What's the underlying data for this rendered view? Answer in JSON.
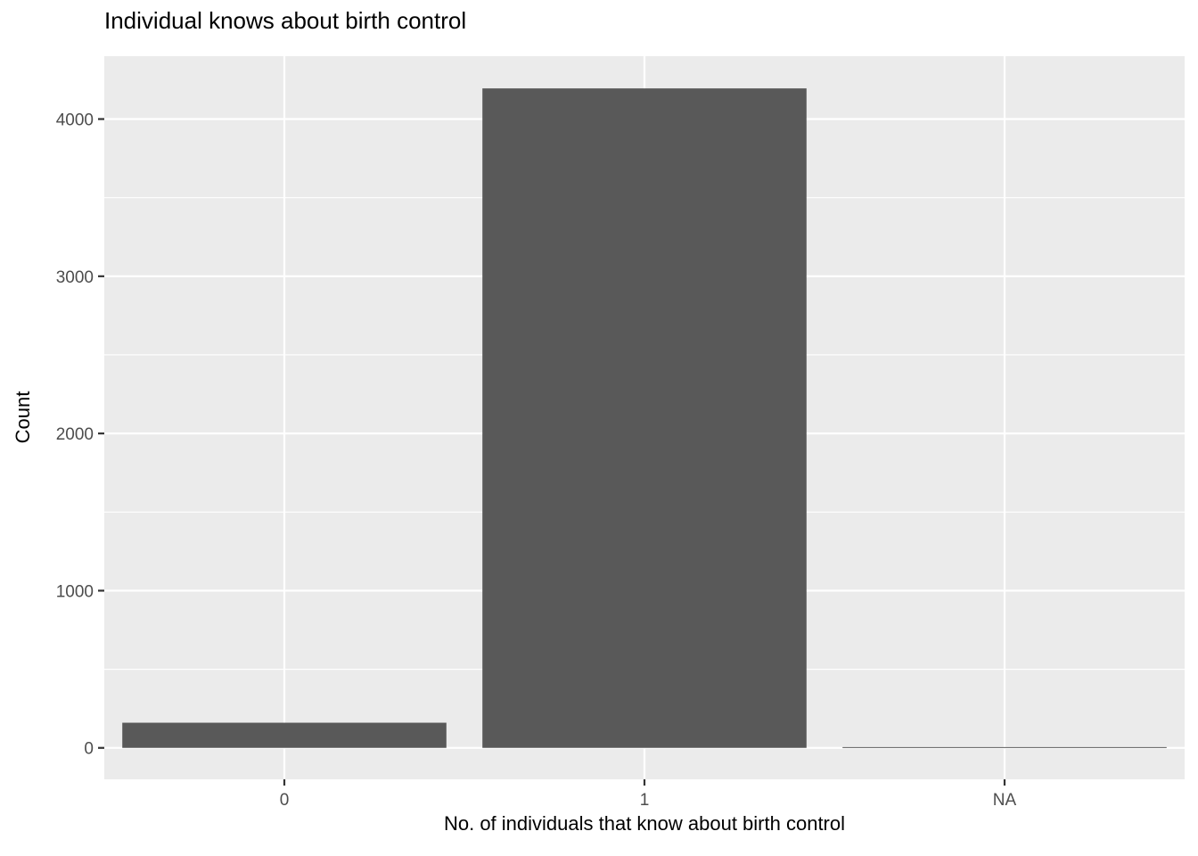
{
  "chart_data": {
    "type": "bar",
    "title": "Individual knows about birth control",
    "xlabel": "No. of individuals that know about birth control",
    "ylabel": "Count",
    "categories": [
      "0",
      "1",
      "NA"
    ],
    "values": [
      160,
      4195,
      5
    ],
    "ylim": [
      -200,
      4400
    ],
    "yticks": [
      0,
      1000,
      2000,
      3000,
      4000
    ],
    "yticks_labels": [
      "0",
      "1000",
      "2000",
      "3000",
      "4000"
    ],
    "grid": true,
    "legend": "none",
    "colors": {
      "bar": "#595959",
      "panel_background": "#ebebeb",
      "grid_major": "#ffffff",
      "tick_text": "#4d4d4d",
      "tick_mark": "#333333"
    }
  }
}
